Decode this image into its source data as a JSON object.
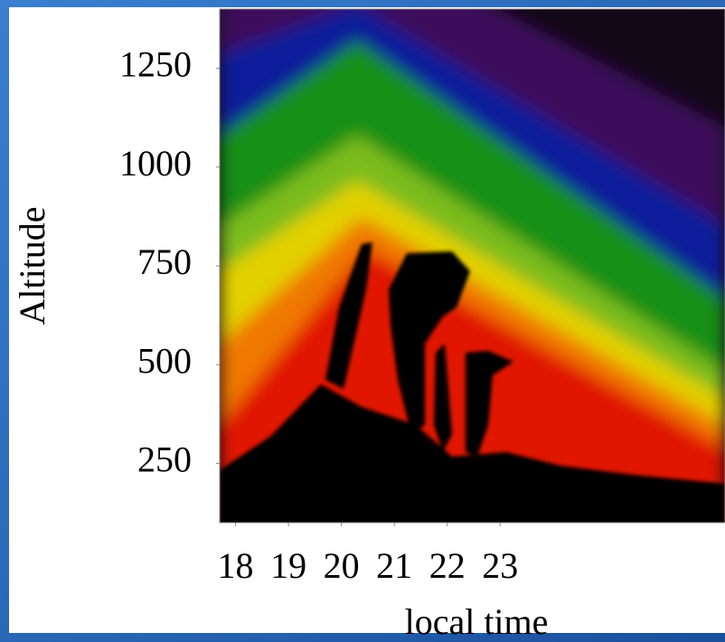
{
  "chart_data": {
    "type": "heatmap",
    "xlabel": "local time",
    "ylabel": "Altitude",
    "xlim": [
      17.7,
      27.25
    ],
    "xticks": [
      18,
      19,
      20,
      21,
      22,
      23
    ],
    "ylim": [
      100,
      1400
    ],
    "yticks": [
      250,
      500,
      750,
      1000,
      1250
    ]
  }
}
